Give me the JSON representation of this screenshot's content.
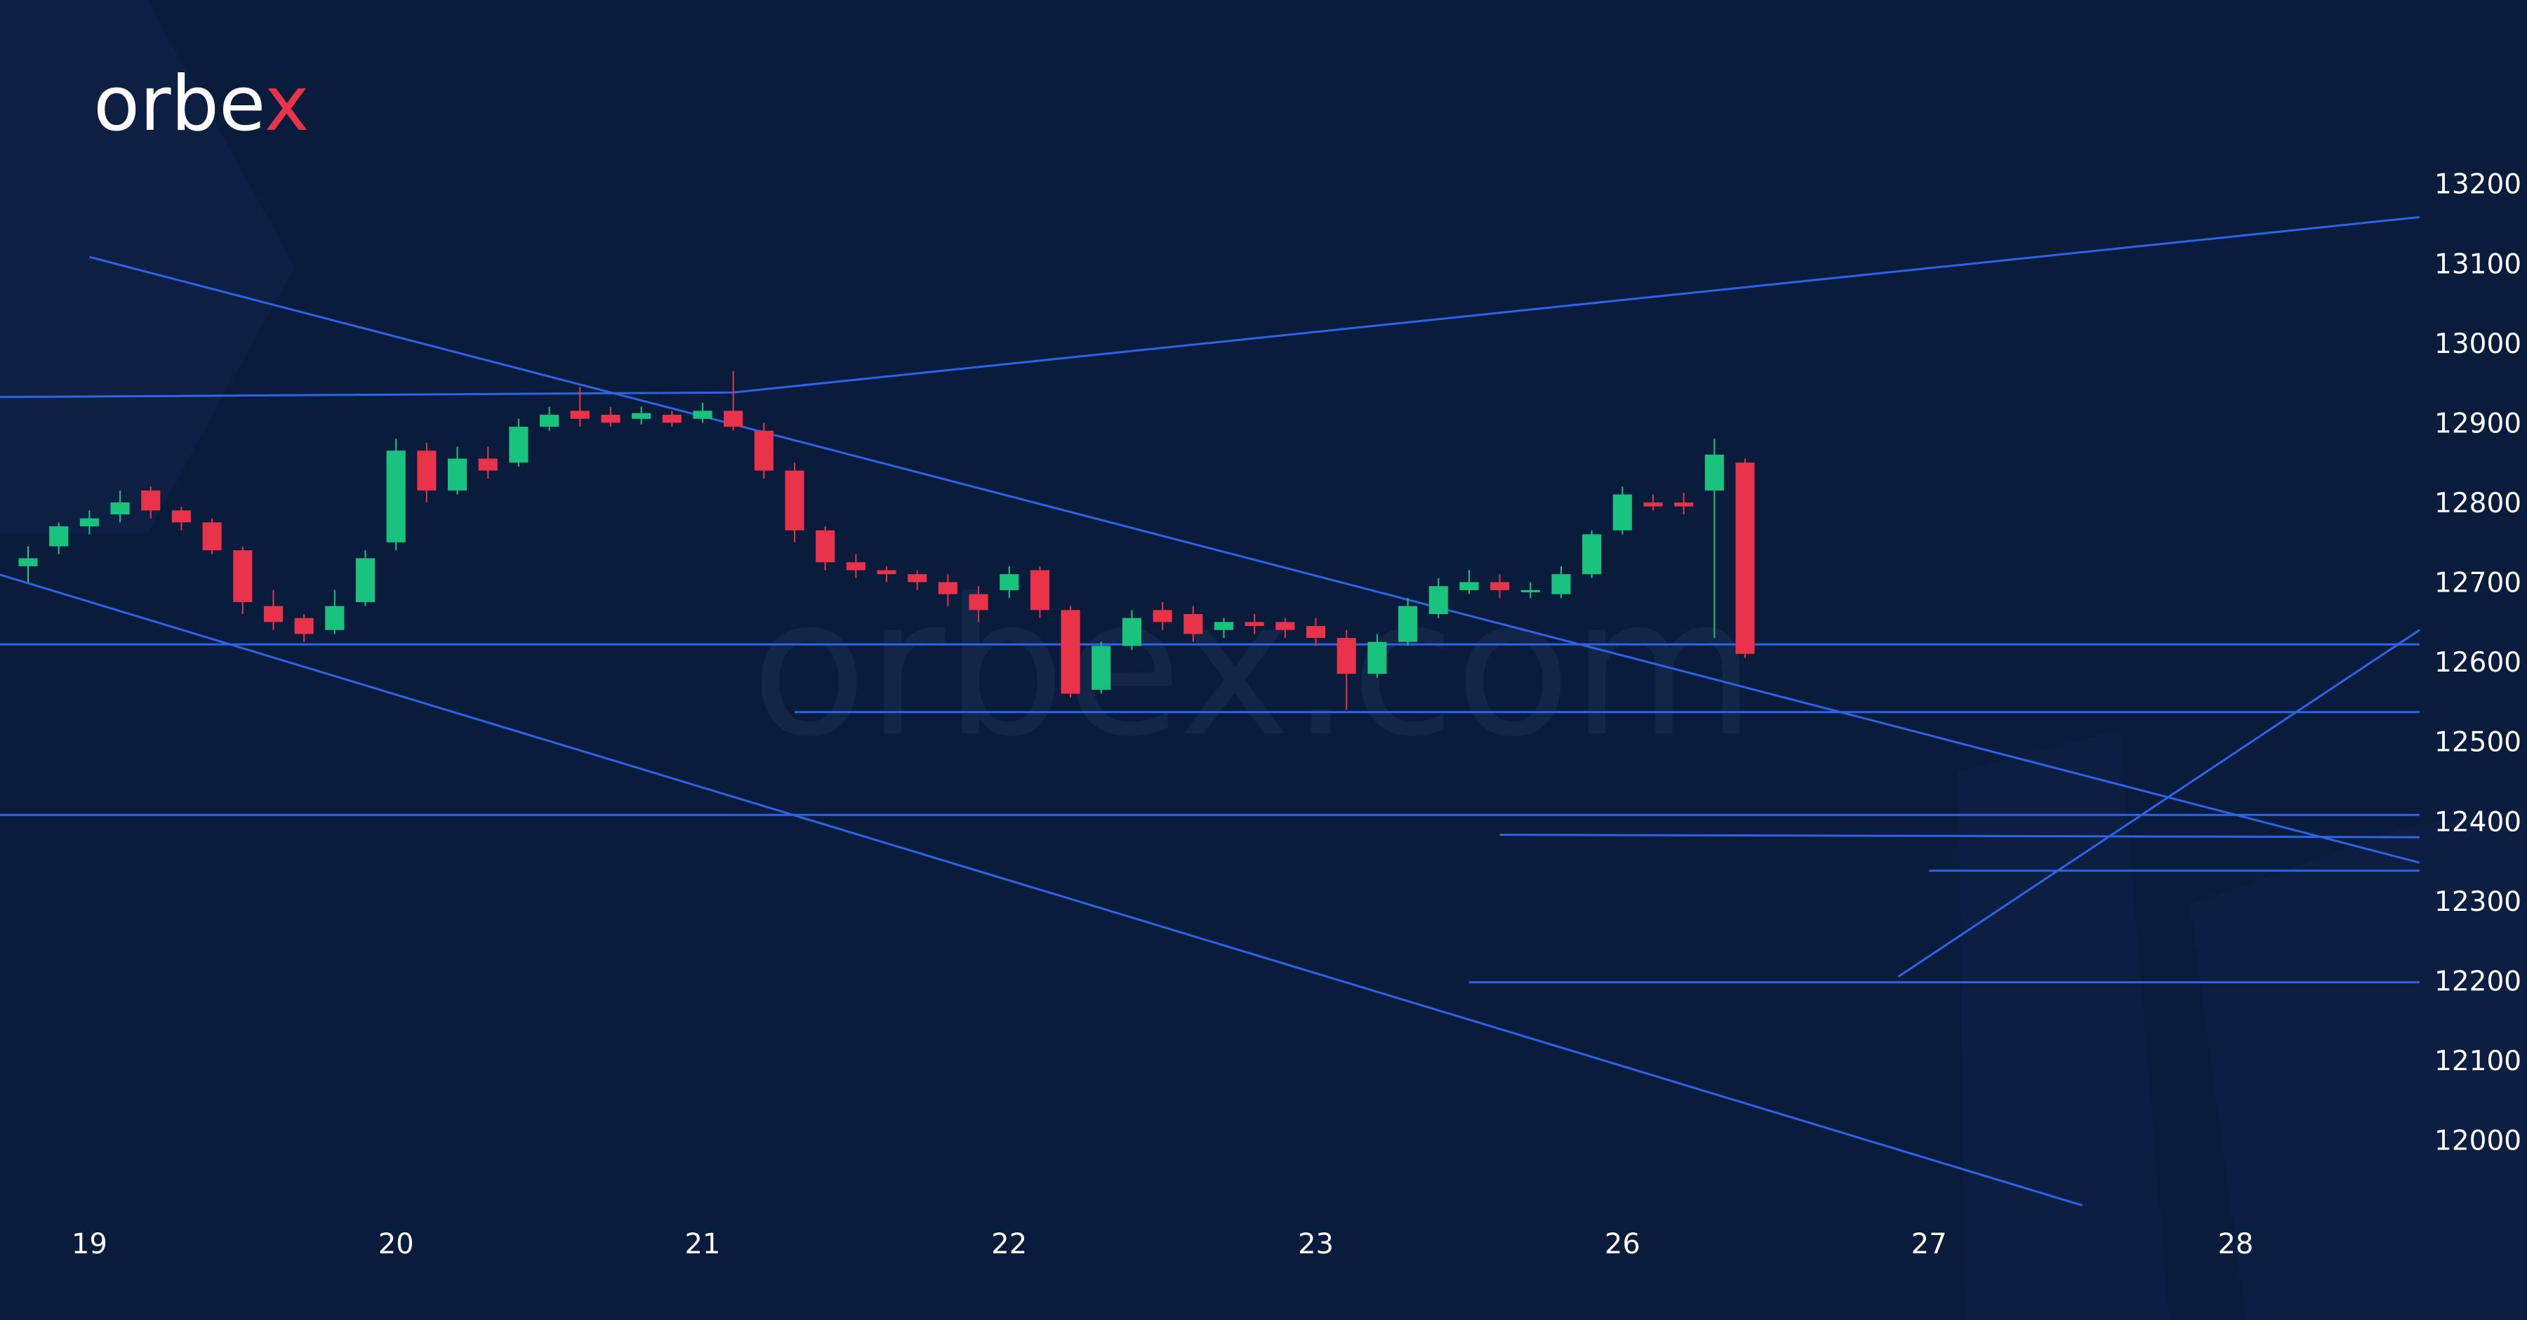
{
  "brand": {
    "logo_main": "orbe",
    "logo_accent": "x",
    "watermark": "orbex.com",
    "accent_color": "#e8334a"
  },
  "colors": {
    "background": "#0a1c3c",
    "line": "#2f63e6",
    "up": "#19c37d",
    "down": "#e8334a",
    "text": "#ffffff"
  },
  "chart_data": {
    "type": "candlestick",
    "xlabel": "",
    "ylabel": "",
    "ylim": [
      11960,
      13220
    ],
    "yticks": [
      12000,
      12100,
      12200,
      12300,
      12400,
      12500,
      12600,
      12700,
      12800,
      12900,
      13000,
      13100,
      13200
    ],
    "x_index_range": [
      0,
      78
    ],
    "xticks": [
      {
        "label": "19",
        "index": 2
      },
      {
        "label": "20",
        "index": 12
      },
      {
        "label": "21",
        "index": 22
      },
      {
        "label": "22",
        "index": 32
      },
      {
        "label": "23",
        "index": 42
      },
      {
        "label": "26",
        "index": 52
      },
      {
        "label": "27",
        "index": 62
      },
      {
        "label": "28",
        "index": 72
      }
    ],
    "candles": [
      [
        12720,
        12730,
        12700,
        12745
      ],
      [
        12745,
        12770,
        12735,
        12775
      ],
      [
        12770,
        12780,
        12760,
        12790
      ],
      [
        12785,
        12800,
        12775,
        12815
      ],
      [
        12815,
        12790,
        12780,
        12820
      ],
      [
        12790,
        12775,
        12765,
        12795
      ],
      [
        12775,
        12740,
        12735,
        12780
      ],
      [
        12740,
        12675,
        12660,
        12745
      ],
      [
        12670,
        12650,
        12640,
        12690
      ],
      [
        12655,
        12635,
        12625,
        12660
      ],
      [
        12640,
        12670,
        12635,
        12690
      ],
      [
        12675,
        12730,
        12670,
        12740
      ],
      [
        12750,
        12865,
        12740,
        12880
      ],
      [
        12865,
        12815,
        12800,
        12875
      ],
      [
        12815,
        12855,
        12810,
        12870
      ],
      [
        12855,
        12840,
        12830,
        12870
      ],
      [
        12850,
        12895,
        12845,
        12905
      ],
      [
        12895,
        12910,
        12890,
        12920
      ],
      [
        12915,
        12905,
        12895,
        12945
      ],
      [
        12910,
        12900,
        12895,
        12920
      ],
      [
        12905,
        12912,
        12898,
        12920
      ],
      [
        12910,
        12900,
        12895,
        12915
      ],
      [
        12905,
        12915,
        12900,
        12925
      ],
      [
        12915,
        12895,
        12890,
        12965
      ],
      [
        12890,
        12840,
        12830,
        12900
      ],
      [
        12840,
        12765,
        12750,
        12850
      ],
      [
        12765,
        12725,
        12715,
        12770
      ],
      [
        12725,
        12715,
        12705,
        12735
      ],
      [
        12715,
        12710,
        12700,
        12720
      ],
      [
        12710,
        12700,
        12690,
        12715
      ],
      [
        12700,
        12685,
        12670,
        12710
      ],
      [
        12685,
        12665,
        12650,
        12695
      ],
      [
        12690,
        12710,
        12680,
        12720
      ],
      [
        12715,
        12665,
        12655,
        12720
      ],
      [
        12665,
        12560,
        12555,
        12670
      ],
      [
        12565,
        12620,
        12560,
        12625
      ],
      [
        12620,
        12655,
        12615,
        12665
      ],
      [
        12665,
        12650,
        12640,
        12675
      ],
      [
        12660,
        12635,
        12625,
        12670
      ],
      [
        12640,
        12650,
        12630,
        12655
      ],
      [
        12650,
        12645,
        12635,
        12660
      ],
      [
        12650,
        12640,
        12630,
        12655
      ],
      [
        12645,
        12630,
        12620,
        12655
      ],
      [
        12630,
        12585,
        12540,
        12640
      ],
      [
        12585,
        12625,
        12580,
        12635
      ],
      [
        12625,
        12670,
        12620,
        12680
      ],
      [
        12660,
        12695,
        12655,
        12705
      ],
      [
        12690,
        12700,
        12685,
        12715
      ],
      [
        12700,
        12690,
        12680,
        12710
      ],
      [
        12690,
        12690,
        12680,
        12700
      ],
      [
        12685,
        12710,
        12680,
        12720
      ],
      [
        12710,
        12760,
        12705,
        12765
      ],
      [
        12765,
        12810,
        12760,
        12820
      ],
      [
        12800,
        12795,
        12790,
        12810
      ],
      [
        12800,
        12795,
        12785,
        12812
      ],
      [
        12815,
        12860,
        12630,
        12880
      ],
      [
        12850,
        12610,
        12605,
        12855
      ]
    ],
    "lines": [
      {
        "name": "",
        "points": [
          [
            -2,
            12932
          ],
          [
            23,
            12938
          ],
          [
            78,
            13158
          ]
        ]
      },
      {
        "name": "",
        "points": [
          [
            2,
            13108
          ],
          [
            78,
            12348
          ]
        ]
      },
      {
        "name": "",
        "points": [
          [
            -2,
            12722
          ],
          [
            67,
            11918
          ]
        ]
      },
      {
        "name": "",
        "points": [
          [
            -2,
            12622
          ],
          [
            78,
            12622
          ]
        ]
      },
      {
        "name": "",
        "points": [
          [
            25,
            12537
          ],
          [
            78,
            12537
          ]
        ]
      },
      {
        "name": "",
        "points": [
          [
            -2,
            12408
          ],
          [
            78,
            12408
          ]
        ]
      },
      {
        "name": "",
        "points": [
          [
            48,
            12383
          ],
          [
            78,
            12380
          ]
        ]
      },
      {
        "name": "",
        "points": [
          [
            62,
            12338
          ],
          [
            78,
            12338
          ]
        ]
      },
      {
        "name": "",
        "points": [
          [
            47,
            12198
          ],
          [
            78,
            12198
          ]
        ]
      },
      {
        "name": "",
        "points": [
          [
            61,
            12205
          ],
          [
            78,
            12640
          ]
        ]
      }
    ]
  }
}
